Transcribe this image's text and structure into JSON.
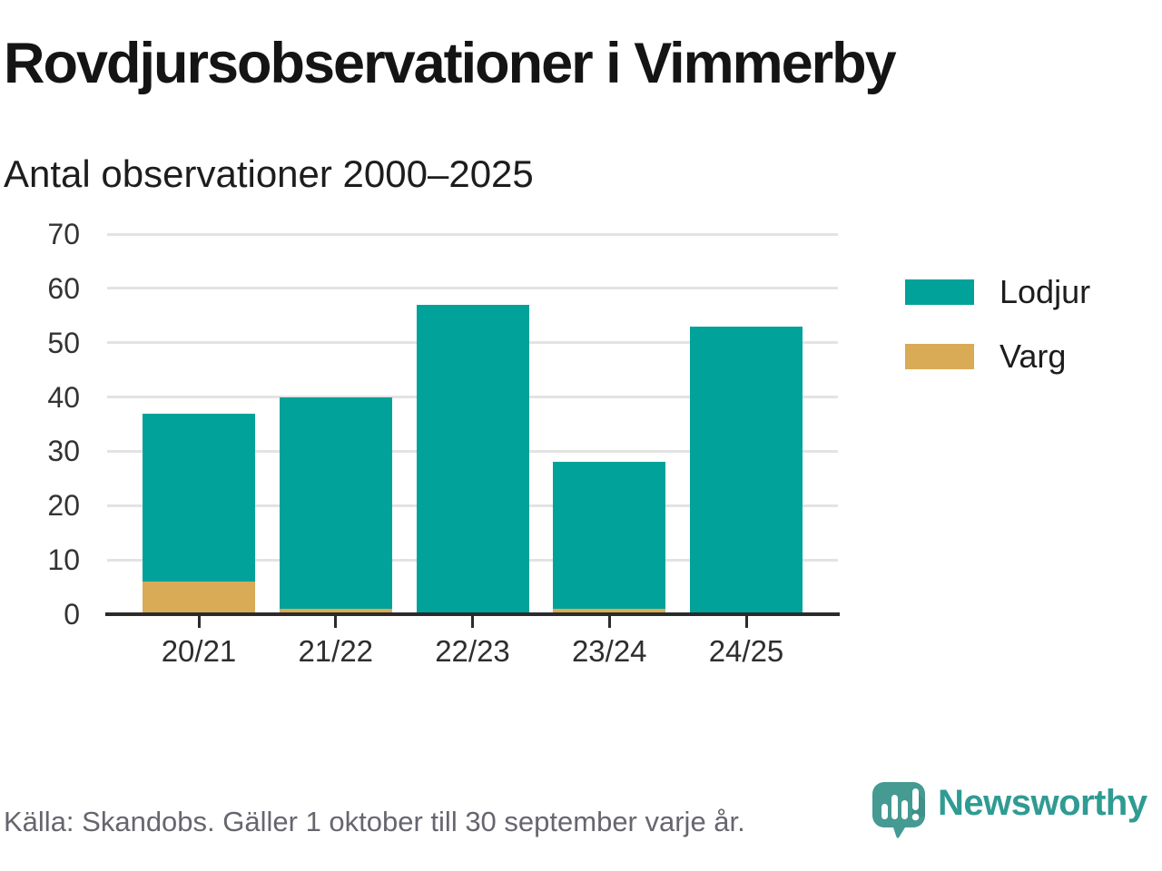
{
  "page": {
    "title": "Rovdjursobservationer i Vimmerby",
    "subtitle": "Antal observationer 2000–2025",
    "source_note": "Källa: Skandobs. Gäller 1 oktober till 30 september varje år.",
    "brand": {
      "name": "Newsworthy",
      "logo_icon": "newsworthy-speech-bubble-bar-chart-icon"
    }
  },
  "colors": {
    "lodjur_teal": "#00a29a",
    "varg_gold": "#d9ab56",
    "axis": "#2b2b2b",
    "gridline": "#e3e3e3",
    "brand_teal": "#459a92",
    "brand_text": "#2f9b93",
    "source_text": "#66666f"
  },
  "chart_data": {
    "type": "bar",
    "stacked": true,
    "title": "Rovdjursobservationer i Vimmerby",
    "subtitle": "Antal observationer 2000–2025",
    "categories": [
      "20/21",
      "21/22",
      "22/23",
      "23/24",
      "24/25"
    ],
    "series": [
      {
        "name": "Lodjur",
        "color": "#00a29a",
        "values": [
          31,
          39,
          57,
          27,
          53
        ]
      },
      {
        "name": "Varg",
        "color": "#d9ab56",
        "values": [
          6,
          1,
          0,
          1,
          0
        ]
      }
    ],
    "stack_bottom_to_top": [
      "Varg",
      "Lodjur"
    ],
    "stacked_totals": [
      37,
      40,
      57,
      28,
      53
    ],
    "ylim": [
      0,
      70
    ],
    "yticks": [
      0,
      10,
      20,
      30,
      40,
      50,
      60,
      70
    ],
    "xlabel": "",
    "ylabel": "",
    "grid": true,
    "legend_position": "right"
  }
}
